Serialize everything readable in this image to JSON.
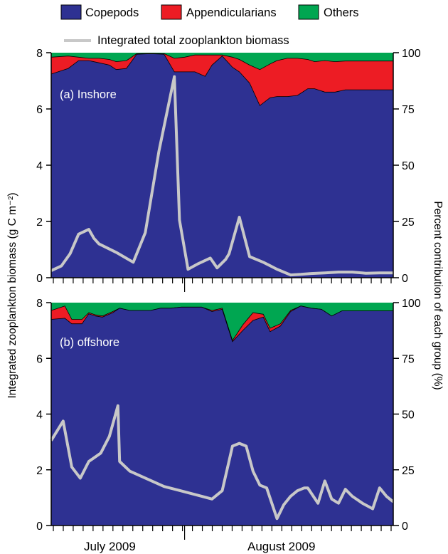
{
  "colors": {
    "copepods": "#2e3192",
    "appendicularians": "#ed1c24",
    "others": "#00a651",
    "line": "#c8c8c8"
  },
  "legend": {
    "copepods": "Copepods",
    "appendicularians": "Appendicularians",
    "others": "Others",
    "line": "Integrated total zooplankton biomass"
  },
  "axes": {
    "left_title": "Integrated zooplankton biomass (g C m⁻²)",
    "right_title": "Percent contribution of each group (%)",
    "left_ticks": [
      "0",
      "2",
      "4",
      "6",
      "8"
    ],
    "right_ticks": [
      "0",
      "25",
      "50",
      "75",
      "100"
    ],
    "months": [
      "July 2009",
      "August 2009"
    ]
  },
  "chart_data": [
    {
      "type": "area",
      "panel": "(a) Inshore",
      "x_tick_count": 34,
      "ylim_left": [
        0,
        8
      ],
      "ylim_right": [
        0,
        100
      ],
      "x": [
        0,
        0.05,
        0.08,
        0.11,
        0.14,
        0.17,
        0.19,
        0.22,
        0.25,
        0.28,
        0.3,
        0.33,
        0.36,
        0.39,
        0.42,
        0.45,
        0.47,
        0.5,
        0.53,
        0.55,
        0.58,
        0.61,
        0.64,
        0.66,
        0.69,
        0.72,
        0.75,
        0.77,
        0.8,
        0.83,
        0.86,
        0.88,
        0.91,
        0.94,
        0.96,
        1.0
      ],
      "copepods_pct": [
        90.5,
        93,
        96.5,
        96.5,
        95.5,
        94.5,
        92.5,
        93,
        99.3,
        99.5,
        99.5,
        99.3,
        91.5,
        91.5,
        91.5,
        89.5,
        94.5,
        98.5,
        93.5,
        91.5,
        86.5,
        76.5,
        80,
        80.5,
        80.5,
        81,
        84,
        84,
        82.5,
        82.5,
        83.5,
        83.5,
        83.5,
        83.5,
        83.5,
        83.5
      ],
      "copepods_app_pct": [
        98,
        98.5,
        98,
        97.5,
        97.5,
        97,
        96,
        96.5,
        99.6,
        99.7,
        99.7,
        99.6,
        97.5,
        98,
        99,
        99,
        99,
        99,
        98,
        97,
        94.5,
        92.5,
        95,
        96.5,
        97.5,
        97.5,
        97,
        96,
        96.5,
        96,
        96.3,
        96.3,
        96.3,
        96.3,
        96.3,
        96.3
      ],
      "biomass_x": [
        0,
        0.03,
        0.055,
        0.08,
        0.11,
        0.125,
        0.14,
        0.19,
        0.24,
        0.275,
        0.315,
        0.36,
        0.375,
        0.4,
        0.43,
        0.465,
        0.485,
        0.51,
        0.52,
        0.55,
        0.58,
        0.62,
        0.66,
        0.7,
        0.73,
        0.76,
        0.8,
        0.84,
        0.88,
        0.92,
        0.96,
        1.0
      ],
      "biomass": [
        0.25,
        0.42,
        0.85,
        1.55,
        1.72,
        1.4,
        1.2,
        0.9,
        0.55,
        1.6,
        4.5,
        7.15,
        2.05,
        0.3,
        0.5,
        0.7,
        0.35,
        0.65,
        0.85,
        2.15,
        0.75,
        0.55,
        0.3,
        0.1,
        0.12,
        0.15,
        0.17,
        0.2,
        0.2,
        0.16,
        0.17,
        0.17
      ]
    },
    {
      "type": "area",
      "panel": "(b) offshore",
      "x_tick_count": 34,
      "ylim_left": [
        0,
        8
      ],
      "ylim_right": [
        0,
        100
      ],
      "x": [
        0,
        0.04,
        0.06,
        0.09,
        0.11,
        0.13,
        0.15,
        0.18,
        0.2,
        0.23,
        0.26,
        0.29,
        0.32,
        0.35,
        0.38,
        0.41,
        0.44,
        0.47,
        0.5,
        0.53,
        0.56,
        0.59,
        0.62,
        0.64,
        0.67,
        0.7,
        0.73,
        0.76,
        0.79,
        0.82,
        0.85,
        0.88,
        0.91,
        0.94,
        0.97,
        1.0
      ],
      "copepods_pct": [
        92.5,
        93,
        90.5,
        90.5,
        95,
        94,
        93.5,
        95.5,
        97.5,
        96.5,
        96.5,
        96.5,
        97.5,
        97.5,
        98,
        98,
        98,
        96,
        97,
        82.5,
        87.5,
        92,
        93.5,
        87,
        89.5,
        96,
        98.5,
        97.5,
        97,
        94,
        96.3,
        96.3,
        96.3,
        96.3,
        96.3,
        96.3
      ],
      "copepods_app_pct": [
        96.5,
        98.5,
        92.5,
        92.5,
        95.5,
        94.5,
        94,
        96,
        97.5,
        96.5,
        96.5,
        96.5,
        97.5,
        97.5,
        98,
        98,
        98,
        96.5,
        97.5,
        83,
        90,
        95.5,
        94.8,
        88.5,
        90.5,
        96.5,
        98.5,
        97.5,
        97,
        94,
        96.3,
        96.3,
        96.3,
        96.3,
        96.3,
        96.3
      ],
      "biomass_x": [
        0,
        0.035,
        0.06,
        0.085,
        0.11,
        0.145,
        0.17,
        0.195,
        0.2,
        0.23,
        0.33,
        0.44,
        0.47,
        0.5,
        0.53,
        0.55,
        0.57,
        0.59,
        0.61,
        0.63,
        0.66,
        0.68,
        0.7,
        0.72,
        0.74,
        0.75,
        0.78,
        0.8,
        0.82,
        0.84,
        0.86,
        0.88,
        0.91,
        0.94,
        0.96,
        0.98,
        1.0
      ],
      "biomass": [
        3.05,
        3.75,
        2.1,
        1.7,
        2.3,
        2.6,
        3.2,
        4.3,
        2.3,
        1.95,
        1.4,
        1.05,
        0.95,
        1.25,
        2.85,
        2.95,
        2.85,
        1.95,
        1.45,
        1.35,
        0.25,
        0.75,
        1.05,
        1.25,
        1.35,
        1.35,
        0.8,
        1.6,
        0.95,
        0.8,
        1.3,
        1.05,
        0.8,
        0.6,
        1.35,
        1.05,
        0.85
      ]
    }
  ]
}
